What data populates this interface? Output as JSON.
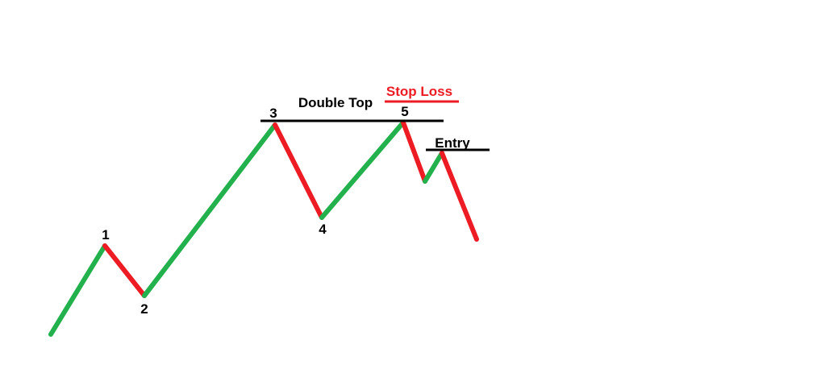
{
  "colors": {
    "up": "#22b14c",
    "down": "#ed1c24",
    "level": "#000000",
    "stop_loss": "#ed1c24",
    "text": "#000000",
    "background": "#ffffff"
  },
  "point_labels": [
    "1",
    "2",
    "3",
    "4",
    "5"
  ],
  "labels": {
    "double_top": "Double Top",
    "stop_loss": "Stop Loss",
    "entry": "Entry"
  }
}
